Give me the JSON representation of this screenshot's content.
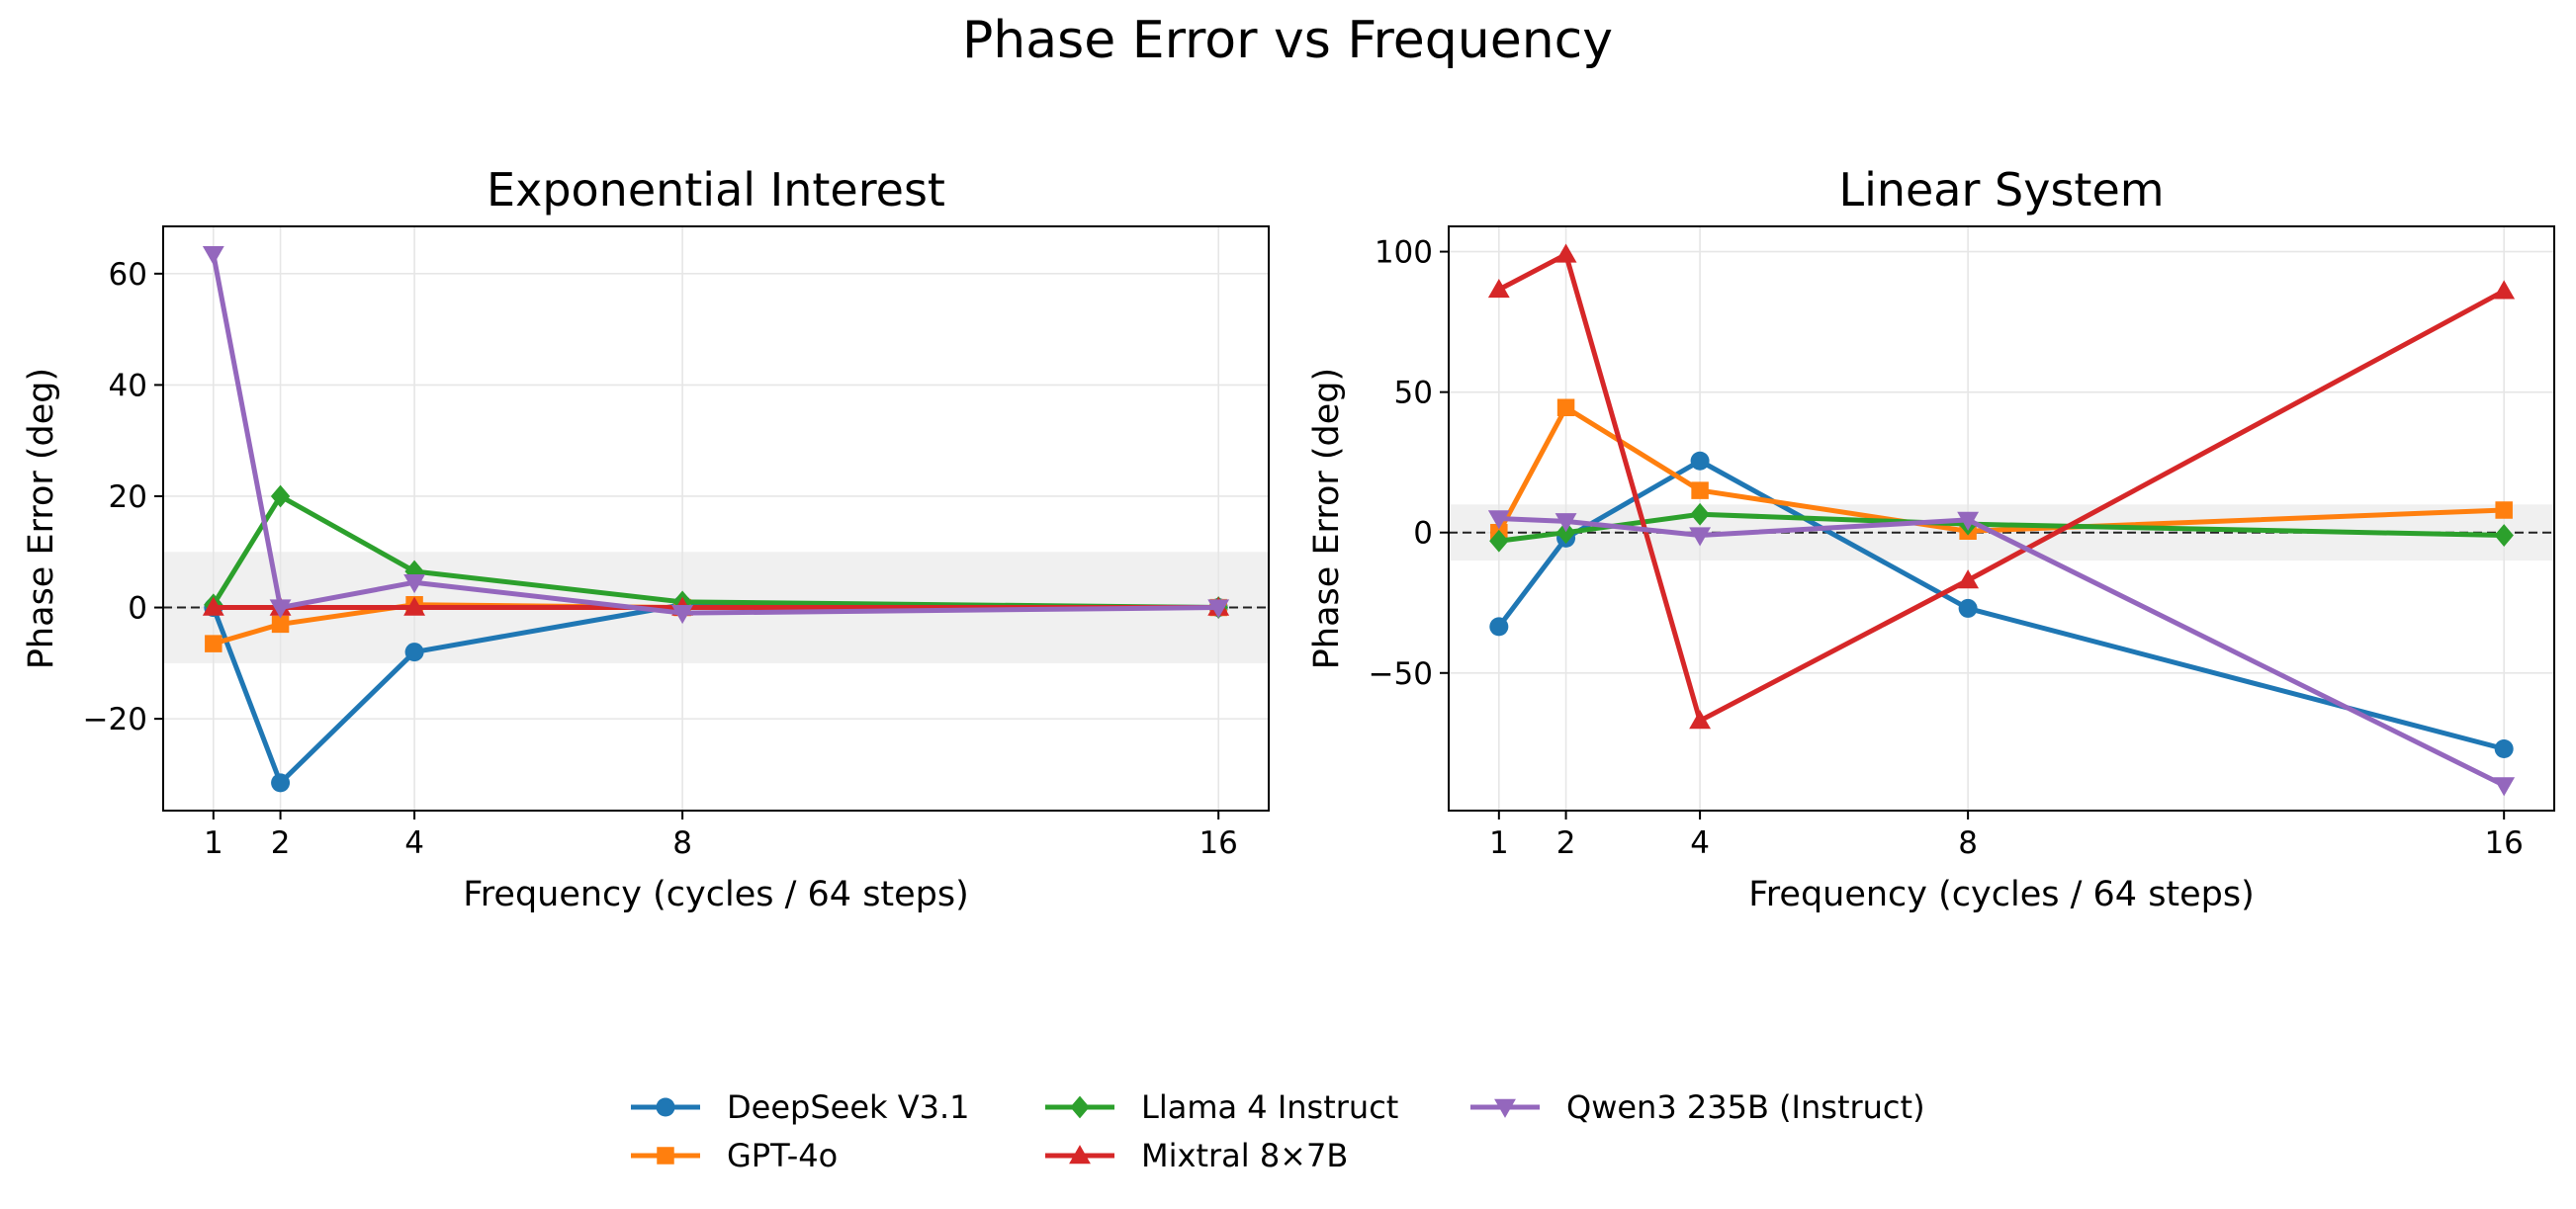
{
  "figure_title": "Phase Error vs Frequency",
  "chart_data": [
    {
      "type": "line",
      "title": "Exponential Interest",
      "xlabel": "Frequency (cycles / 64 steps)",
      "ylabel": "Phase Error (deg)",
      "x": [
        1,
        2,
        4,
        8,
        16
      ],
      "xlim": [
        0.25,
        16.75
      ],
      "ylim": [
        -36.5,
        68.5
      ],
      "xticks": [
        1,
        2,
        4,
        8,
        16
      ],
      "yticks": [
        -20,
        0,
        20,
        40,
        60
      ],
      "ytick_labels": [
        "−20",
        "0",
        "20",
        "40",
        "60"
      ],
      "tolerance_band": [
        -10,
        10
      ],
      "zero_line": 0,
      "grid": true,
      "series": [
        {
          "name": "DeepSeek V3.1",
          "color": "#1f77b4",
          "marker": "circle",
          "values": [
            0,
            -31.5,
            -8,
            0.5,
            0
          ]
        },
        {
          "name": "GPT-4o",
          "color": "#ff7f0e",
          "marker": "square",
          "values": [
            -6.5,
            -3,
            0.5,
            0,
            0
          ]
        },
        {
          "name": "Llama 4 Instruct",
          "color": "#2ca02c",
          "marker": "diamond",
          "values": [
            0.5,
            20,
            6.5,
            1,
            0
          ]
        },
        {
          "name": "Mixtral 8×7B",
          "color": "#d62728",
          "marker": "triangle-up",
          "values": [
            0,
            0,
            0,
            0,
            0
          ]
        },
        {
          "name": "Qwen3 235B (Instruct)",
          "color": "#9467bd",
          "marker": "triangle-down",
          "values": [
            63.5,
            0,
            4.5,
            -1,
            0
          ]
        }
      ]
    },
    {
      "type": "line",
      "title": "Linear System",
      "xlabel": "Frequency (cycles / 64 steps)",
      "ylabel": "Phase Error (deg)",
      "x": [
        1,
        2,
        4,
        8,
        16
      ],
      "xlim": [
        0.25,
        16.75
      ],
      "ylim": [
        -99,
        109
      ],
      "xticks": [
        1,
        2,
        4,
        8,
        16
      ],
      "yticks": [
        -50,
        0,
        50,
        100
      ],
      "ytick_labels": [
        "−50",
        "0",
        "50",
        "100"
      ],
      "tolerance_band": [
        -10,
        10
      ],
      "zero_line": 0,
      "grid": true,
      "series": [
        {
          "name": "DeepSeek V3.1",
          "color": "#1f77b4",
          "marker": "circle",
          "values": [
            -33.5,
            -2,
            25.5,
            -27,
            -77
          ]
        },
        {
          "name": "GPT-4o",
          "color": "#ff7f0e",
          "marker": "square",
          "values": [
            0,
            44.5,
            15,
            0.5,
            8
          ]
        },
        {
          "name": "Llama 4 Instruct",
          "color": "#2ca02c",
          "marker": "diamond",
          "values": [
            -3,
            0,
            6.5,
            3,
            -1
          ]
        },
        {
          "name": "Mixtral 8×7B",
          "color": "#d62728",
          "marker": "triangle-up",
          "values": [
            86.5,
            99,
            -67,
            -17,
            86
          ]
        },
        {
          "name": "Qwen3 235B (Instruct)",
          "color": "#9467bd",
          "marker": "triangle-down",
          "values": [
            5,
            4,
            -1,
            4.5,
            -90
          ]
        }
      ]
    }
  ],
  "legend": {
    "placement": "bottom-center",
    "entries": [
      {
        "label": "DeepSeek V3.1",
        "color": "#1f77b4",
        "marker": "circle"
      },
      {
        "label": "GPT-4o",
        "color": "#ff7f0e",
        "marker": "square"
      },
      {
        "label": "Llama 4 Instruct",
        "color": "#2ca02c",
        "marker": "diamond"
      },
      {
        "label": "Mixtral 8×7B",
        "color": "#d62728",
        "marker": "triangle-up"
      },
      {
        "label": "Qwen3 235B (Instruct)",
        "color": "#9467bd",
        "marker": "triangle-down"
      }
    ]
  }
}
